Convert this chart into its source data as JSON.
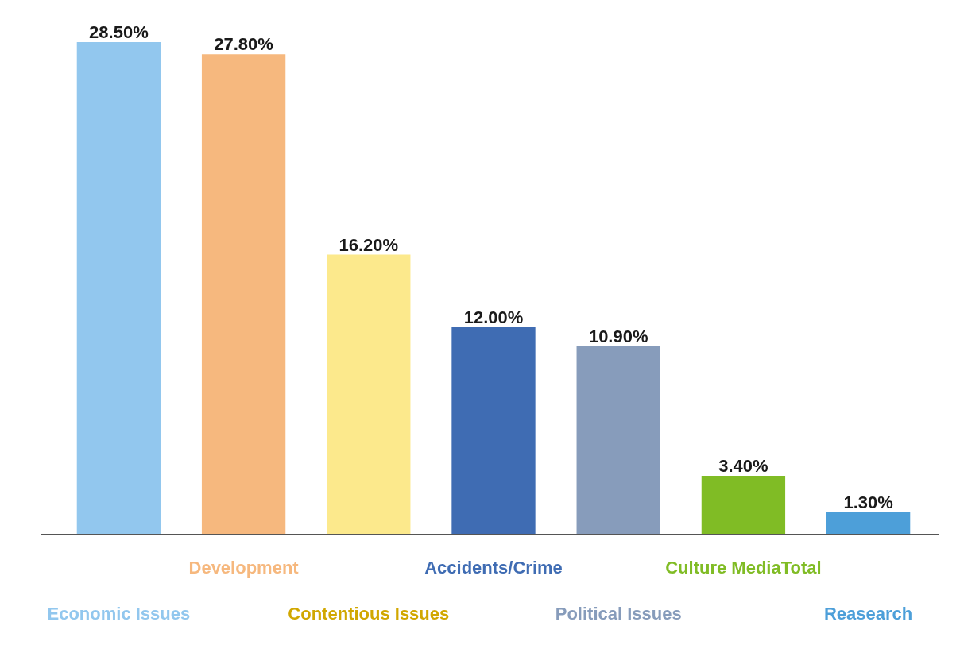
{
  "chart_data": {
    "type": "bar",
    "categories": [
      "Economic Issues",
      "Development",
      "Contentious Issues",
      "Accidents/Crime",
      "Political Issues",
      "Culture MediaTotal",
      "Reasearch"
    ],
    "values": [
      28.5,
      27.8,
      16.2,
      12.0,
      10.9,
      3.4,
      1.3
    ],
    "colors": [
      "#92c7ee",
      "#f6b87e",
      "#fce98c",
      "#3f6cb3",
      "#879cbb",
      "#80bc25",
      "#4d9fd9"
    ],
    "value_labels": [
      "28.50%",
      "27.80%",
      "16.20%",
      "12.00%",
      "10.90%",
      "3.40%",
      "1.30%"
    ]
  }
}
